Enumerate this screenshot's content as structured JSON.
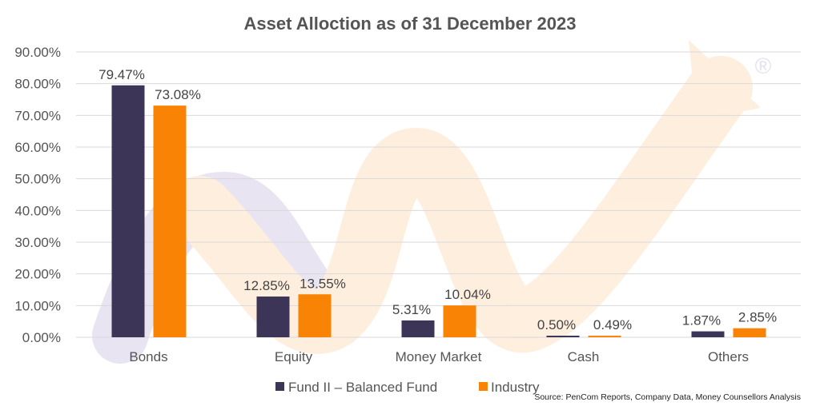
{
  "chart_data": {
    "type": "bar",
    "title": "Asset Alloction as of 31 December 2023",
    "categories": [
      "Bonds",
      "Equity",
      "Money Market",
      "Cash",
      "Others"
    ],
    "series": [
      {
        "name": "Fund II – Balanced Fund",
        "color": "#3d3557",
        "values": [
          79.47,
          12.85,
          5.31,
          0.5,
          1.87
        ],
        "labels": [
          "79.47%",
          "12.85%",
          "5.31%",
          "0.50%",
          "1.87%"
        ]
      },
      {
        "name": "Industry",
        "color": "#f98304",
        "values": [
          73.08,
          13.55,
          10.04,
          0.49,
          2.85
        ],
        "labels": [
          "73.08%",
          "13.55%",
          "10.04%",
          "0.49%",
          "2.85%"
        ]
      }
    ],
    "yticks": [
      "0.00%",
      "10.00%",
      "20.00%",
      "30.00%",
      "40.00%",
      "50.00%",
      "60.00%",
      "70.00%",
      "80.00%",
      "90.00%"
    ],
    "ylim": [
      0,
      90
    ],
    "grid": true,
    "legend": "bottom",
    "source": "Source: PenCom Reports, Company Data, Money Counsellors Analysis",
    "watermark": "®"
  }
}
